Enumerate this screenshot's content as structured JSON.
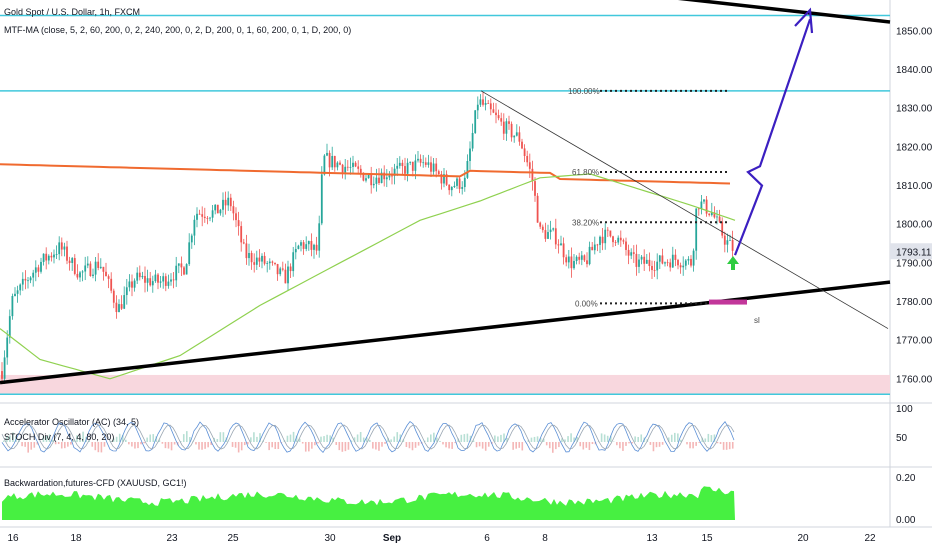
{
  "chart_data": {
    "type": "candlestick",
    "symbol_title": "Gold Spot / U.S. Dollar, 1h, FXCM",
    "indicator_ma": "MTF-MA (close, 5, 2, 60, 200, 0, 2, 240, 200, 0, 2, D, 200, 0, 1, 60, 200, 0, 1, D, 200, 0)",
    "pane2_titles": [
      "Accelerator Oscillator (AC) (34, 5)",
      "STOCH Div (7, 4, 4, 80, 20)"
    ],
    "pane3_title": "Backwardation,futures-CFD (XAUUSD, GC1!)",
    "price_axis": {
      "ticks": [
        1850,
        1840,
        1830,
        1820,
        1810,
        1800,
        1790,
        1780,
        1770,
        1760
      ],
      "ylim": [
        1754,
        1858
      ],
      "current_price": "1793.11"
    },
    "pane2_axis": [
      "100",
      "50"
    ],
    "pane3_axis": [
      "0.20",
      "0.00"
    ],
    "time_axis": [
      "16",
      "18",
      "23",
      "25",
      "30",
      "Sep",
      "6",
      "8",
      "13",
      "15",
      "20",
      "22"
    ],
    "fib_levels": [
      {
        "label": "100.00%",
        "price": 1834.5
      },
      {
        "label": "61.80%",
        "price": 1813.5
      },
      {
        "label": "38.20%",
        "price": 1800.5
      },
      {
        "label": "0.00%",
        "price": 1779.5
      }
    ],
    "horizontal_levels": [
      1854,
      1834.5,
      1756
    ],
    "support_zone": [
      1756,
      1761
    ],
    "stop_label": "sl",
    "ma_fast_start": 1768,
    "ma_slow_level": 1813,
    "colors": {
      "up": "#26a69a",
      "down": "#ef5350",
      "ma_fast": "#8fd14f",
      "ma_slow": "#f06a2f",
      "cyan_lines": "#41c8dc",
      "trend": "#000000",
      "projection": "#3b1fc1",
      "arrow": "#2ecc40",
      "stop": "#c2379a",
      "zone": "#f8d7de",
      "backwardation": "#47f041"
    }
  }
}
